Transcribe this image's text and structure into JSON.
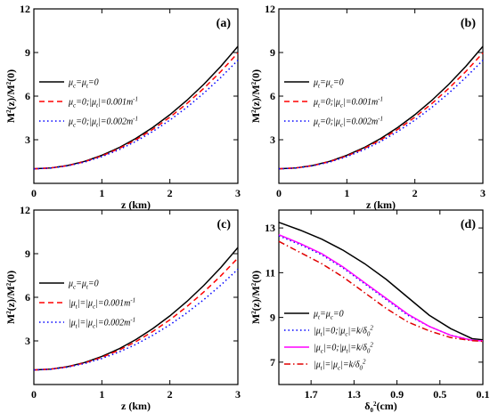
{
  "chart_data": [
    {
      "type": "line",
      "panel_label": "(a)",
      "xlabel": "z (km)",
      "ylabel": "M²(z)/M²(0)",
      "xlim": [
        0,
        3
      ],
      "ylim": [
        0,
        12
      ],
      "x_ticks": [
        0,
        1,
        2,
        3
      ],
      "y_ticks": [
        3,
        6,
        9,
        12
      ],
      "x_tick_labels": [
        "0",
        "1",
        "2",
        "3"
      ],
      "y_tick_labels": [
        "3",
        "6",
        "9",
        "12"
      ],
      "grid": false,
      "legend_position": "center-left",
      "x": [
        0,
        0.25,
        0.5,
        0.75,
        1.0,
        1.25,
        1.5,
        1.75,
        2.0,
        2.25,
        2.5,
        2.75,
        3.0
      ],
      "series": [
        {
          "name": "μc=μt=0",
          "color": "#000000",
          "dash": "solid",
          "values": [
            1.0,
            1.06,
            1.23,
            1.52,
            1.93,
            2.45,
            3.09,
            3.85,
            4.72,
            5.71,
            6.82,
            8.05,
            9.42
          ]
        },
        {
          "name": "μc=0;|μt|=0.001m⁻¹",
          "color": "#ff0000",
          "dash": "dash",
          "values": [
            1.0,
            1.06,
            1.22,
            1.5,
            1.89,
            2.39,
            3.0,
            3.72,
            4.55,
            5.49,
            6.54,
            7.7,
            8.97
          ]
        },
        {
          "name": "μc=0;|μt|=0.002m⁻¹",
          "color": "#0000ff",
          "dash": "dot",
          "values": [
            1.0,
            1.05,
            1.21,
            1.47,
            1.84,
            2.31,
            2.89,
            3.57,
            4.35,
            5.23,
            6.21,
            7.29,
            8.47
          ]
        }
      ]
    },
    {
      "type": "line",
      "panel_label": "(b)",
      "xlabel": "z (km)",
      "ylabel": "M²(z)/M²(0)",
      "xlim": [
        0,
        3
      ],
      "ylim": [
        0,
        12
      ],
      "x_ticks": [
        0,
        1,
        2,
        3
      ],
      "y_ticks": [
        3,
        6,
        9,
        12
      ],
      "x_tick_labels": [
        "0",
        "1",
        "2",
        "3"
      ],
      "y_tick_labels": [
        "3",
        "6",
        "9",
        "12"
      ],
      "grid": false,
      "legend_position": "center-left",
      "x": [
        0,
        0.25,
        0.5,
        0.75,
        1.0,
        1.25,
        1.5,
        1.75,
        2.0,
        2.25,
        2.5,
        2.75,
        3.0
      ],
      "series": [
        {
          "name": "μt=μc=0",
          "color": "#000000",
          "dash": "solid",
          "values": [
            1.0,
            1.06,
            1.23,
            1.52,
            1.93,
            2.45,
            3.09,
            3.85,
            4.72,
            5.71,
            6.82,
            8.05,
            9.42
          ]
        },
        {
          "name": "μt=0;|μc|=0.001m⁻¹",
          "color": "#ff0000",
          "dash": "dash",
          "values": [
            1.0,
            1.06,
            1.22,
            1.5,
            1.89,
            2.39,
            3.0,
            3.72,
            4.55,
            5.49,
            6.54,
            7.7,
            8.97
          ]
        },
        {
          "name": "μt=0;|μc|=0.002m⁻¹",
          "color": "#0000ff",
          "dash": "dot",
          "values": [
            1.0,
            1.05,
            1.21,
            1.47,
            1.84,
            2.31,
            2.89,
            3.57,
            4.35,
            5.23,
            6.21,
            7.29,
            8.47
          ]
        }
      ]
    },
    {
      "type": "line",
      "panel_label": "(c)",
      "xlabel": "z (km)",
      "ylabel": "M²(z)/M²(0)",
      "xlim": [
        0,
        3
      ],
      "ylim": [
        0,
        12
      ],
      "x_ticks": [
        0,
        1,
        2,
        3
      ],
      "y_ticks": [
        3,
        6,
        9,
        12
      ],
      "x_tick_labels": [
        "0",
        "1",
        "2",
        "3"
      ],
      "y_tick_labels": [
        "3",
        "6",
        "9",
        "12"
      ],
      "grid": false,
      "legend_position": "center-left",
      "x": [
        0,
        0.25,
        0.5,
        0.75,
        1.0,
        1.25,
        1.5,
        1.75,
        2.0,
        2.25,
        2.5,
        2.75,
        3.0
      ],
      "series": [
        {
          "name": "μc=μt=0",
          "color": "#000000",
          "dash": "solid",
          "values": [
            1.0,
            1.06,
            1.23,
            1.52,
            1.93,
            2.45,
            3.09,
            3.85,
            4.72,
            5.71,
            6.82,
            8.05,
            9.42
          ]
        },
        {
          "name": "|μt|=|μc|=0.001m⁻¹",
          "color": "#ff0000",
          "dash": "dash",
          "values": [
            1.0,
            1.06,
            1.22,
            1.49,
            1.87,
            2.36,
            2.95,
            3.65,
            4.45,
            5.36,
            6.37,
            7.48,
            8.7
          ]
        },
        {
          "name": "|μt|=|μc|=0.002m⁻¹",
          "color": "#0000ff",
          "dash": "dot",
          "values": [
            1.0,
            1.05,
            1.2,
            1.45,
            1.79,
            2.23,
            2.76,
            3.39,
            4.11,
            4.93,
            5.84,
            6.84,
            7.93
          ]
        }
      ]
    },
    {
      "type": "line",
      "panel_label": "(d)",
      "xlabel": "δ0²(cm)",
      "ylabel": "M²(z)/M²(0)",
      "xlim": [
        2.0,
        0.1
      ],
      "ylim": [
        6.0,
        13.8
      ],
      "x_ticks": [
        1.7,
        1.3,
        0.9,
        0.5,
        0.1
      ],
      "y_ticks": [
        7,
        9,
        11,
        13
      ],
      "x_tick_labels": [
        "1.7",
        "1.3",
        "0.9",
        "0.5",
        "0.1"
      ],
      "y_tick_labels": [
        "7",
        "9",
        "11",
        "13"
      ],
      "grid": false,
      "legend_position": "bottom-left",
      "x": [
        2.0,
        1.8,
        1.6,
        1.4,
        1.2,
        1.0,
        0.8,
        0.6,
        0.4,
        0.2,
        0.1
      ],
      "series": [
        {
          "name": "μt=μc=0",
          "color": "#000000",
          "dash": "solid",
          "values": [
            13.25,
            12.9,
            12.5,
            12.0,
            11.4,
            10.7,
            9.9,
            9.1,
            8.5,
            8.05,
            8.0
          ]
        },
        {
          "name": "|μt|=0;|μc|=k/δ0²",
          "color": "#0000ff",
          "dash": "dot",
          "values": [
            12.65,
            12.25,
            11.8,
            11.2,
            10.5,
            9.8,
            9.1,
            8.6,
            8.2,
            7.98,
            7.95
          ]
        },
        {
          "name": "|μc|=0;|μt|=k/δ0²",
          "color": "#ff00ff",
          "dash": "solid",
          "values": [
            12.7,
            12.3,
            11.85,
            11.25,
            10.55,
            9.85,
            9.15,
            8.6,
            8.2,
            7.98,
            7.95
          ]
        },
        {
          "name": "|μt|=|μc|=k/δ0²",
          "color": "#e00000",
          "dash": "dashdot",
          "values": [
            12.4,
            11.9,
            11.4,
            10.8,
            10.1,
            9.4,
            8.8,
            8.4,
            8.1,
            7.96,
            7.93
          ]
        }
      ]
    }
  ]
}
